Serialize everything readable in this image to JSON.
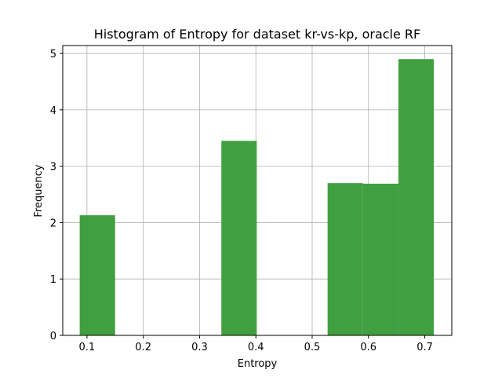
{
  "chart_data": {
    "type": "bar",
    "title": "Histogram of Entropy for dataset kr-vs-kp, oracle RF",
    "xlabel": "Entropy",
    "ylabel": "Frequency",
    "xlim": [
      0.057,
      0.748
    ],
    "ylim": [
      0,
      5.14
    ],
    "xticks": [
      0.1,
      0.2,
      0.3,
      0.4,
      0.5,
      0.6,
      0.7
    ],
    "xtick_labels": [
      "0.1",
      "0.2",
      "0.3",
      "0.4",
      "0.5",
      "0.6",
      "0.7"
    ],
    "yticks": [
      0,
      1,
      2,
      3,
      4,
      5
    ],
    "ytick_labels": [
      "0",
      "1",
      "2",
      "3",
      "4",
      "5"
    ],
    "grid": true,
    "bar_color": "#40a040",
    "bins": [
      {
        "x0": 0.0871,
        "x1": 0.15,
        "value": 2.13
      },
      {
        "x0": 0.15,
        "x1": 0.2129,
        "value": 0
      },
      {
        "x0": 0.2129,
        "x1": 0.2758,
        "value": 0
      },
      {
        "x0": 0.2758,
        "x1": 0.3387,
        "value": 0
      },
      {
        "x0": 0.3387,
        "x1": 0.4016,
        "value": 3.45
      },
      {
        "x0": 0.4016,
        "x1": 0.4645,
        "value": 0
      },
      {
        "x0": 0.4645,
        "x1": 0.5274,
        "value": 0
      },
      {
        "x0": 0.5274,
        "x1": 0.5903,
        "value": 2.7
      },
      {
        "x0": 0.5903,
        "x1": 0.6532,
        "value": 2.69
      },
      {
        "x0": 0.6532,
        "x1": 0.7161,
        "value": 4.9
      }
    ]
  }
}
